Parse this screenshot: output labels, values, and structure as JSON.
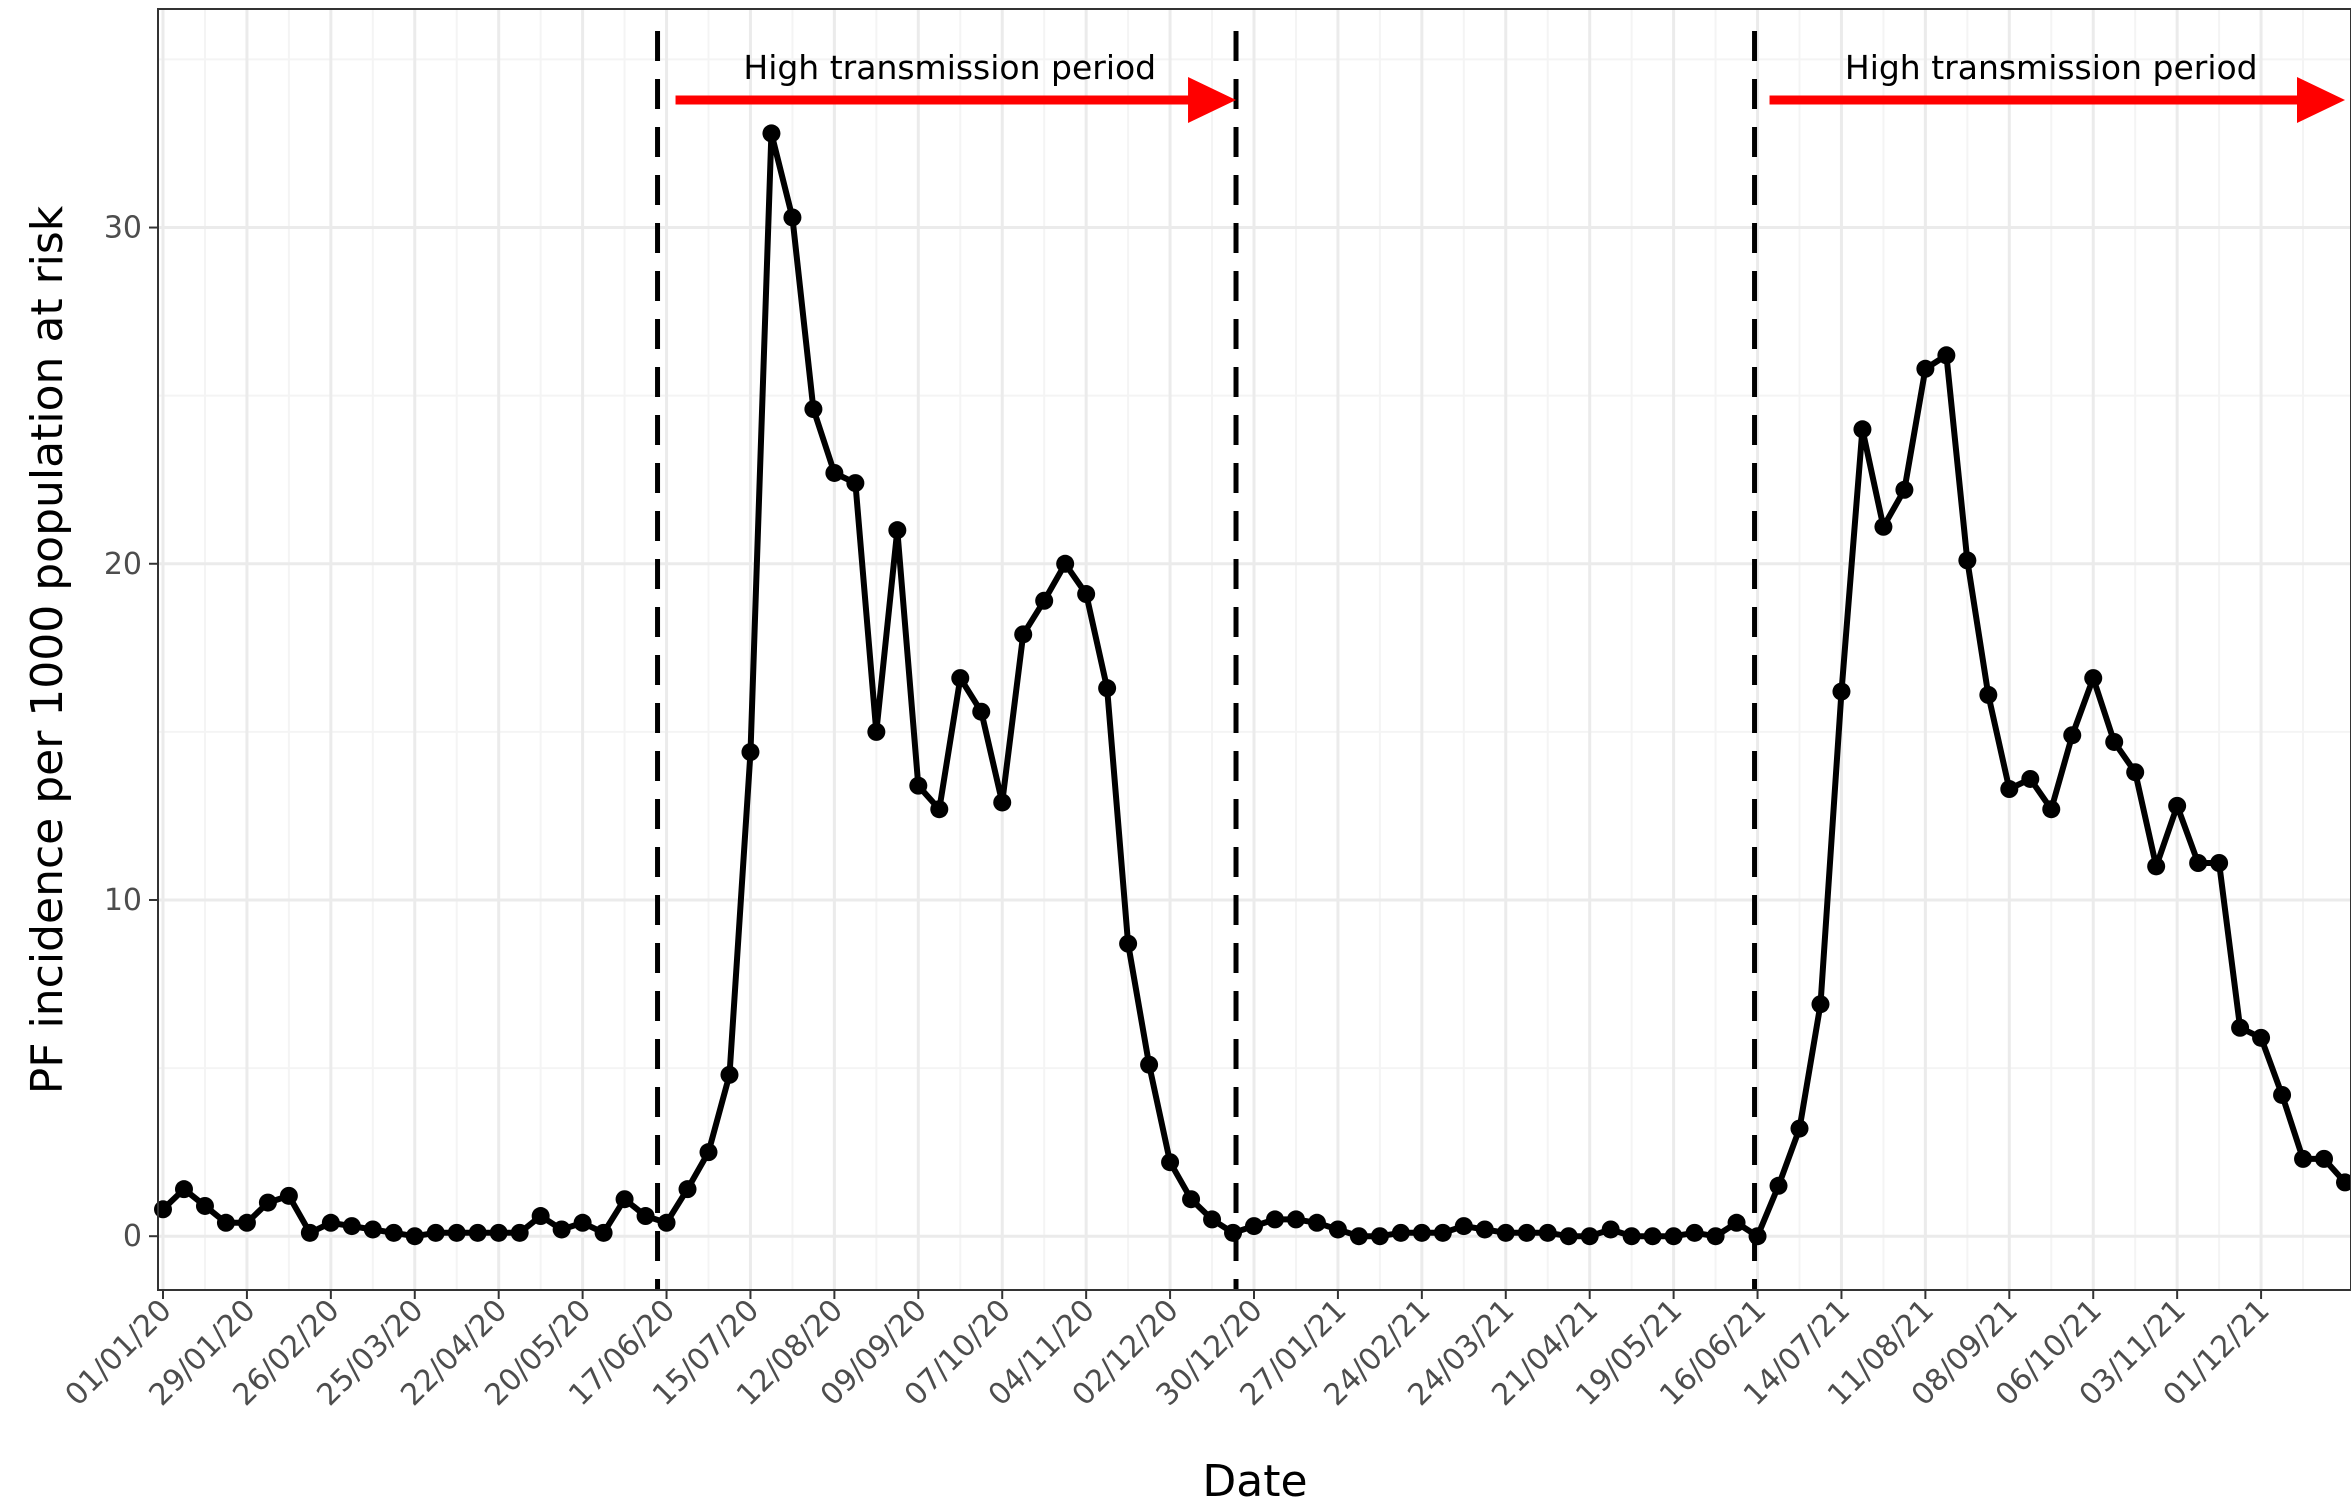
{
  "chart_data": {
    "type": "line",
    "title": "",
    "xlabel": "Date",
    "ylabel": "PF incidence per 1000 population at risk",
    "start_date": "2020-01-01",
    "end_date": "2021-12-29",
    "x_ticks": [
      {
        "date": "2020-01-01",
        "label": "01/01/20"
      },
      {
        "date": "2020-01-29",
        "label": "29/01/20"
      },
      {
        "date": "2020-02-26",
        "label": "26/02/20"
      },
      {
        "date": "2020-03-25",
        "label": "25/03/20"
      },
      {
        "date": "2020-04-22",
        "label": "22/04/20"
      },
      {
        "date": "2020-05-20",
        "label": "20/05/20"
      },
      {
        "date": "2020-06-17",
        "label": "17/06/20"
      },
      {
        "date": "2020-07-15",
        "label": "15/07/20"
      },
      {
        "date": "2020-08-12",
        "label": "12/08/20"
      },
      {
        "date": "2020-09-09",
        "label": "09/09/20"
      },
      {
        "date": "2020-10-07",
        "label": "07/10/20"
      },
      {
        "date": "2020-11-04",
        "label": "04/11/20"
      },
      {
        "date": "2020-12-02",
        "label": "02/12/20"
      },
      {
        "date": "2020-12-30",
        "label": "30/12/20"
      },
      {
        "date": "2021-01-27",
        "label": "27/01/21"
      },
      {
        "date": "2021-02-24",
        "label": "24/02/21"
      },
      {
        "date": "2021-03-24",
        "label": "24/03/21"
      },
      {
        "date": "2021-04-21",
        "label": "21/04/21"
      },
      {
        "date": "2021-05-19",
        "label": "19/05/21"
      },
      {
        "date": "2021-06-16",
        "label": "16/06/21"
      },
      {
        "date": "2021-07-14",
        "label": "14/07/21"
      },
      {
        "date": "2021-08-11",
        "label": "11/08/21"
      },
      {
        "date": "2021-09-08",
        "label": "08/09/21"
      },
      {
        "date": "2021-10-06",
        "label": "06/10/21"
      },
      {
        "date": "2021-11-03",
        "label": "03/11/21"
      },
      {
        "date": "2021-12-01",
        "label": "01/12/21"
      }
    ],
    "y_ticks": [
      0,
      10,
      20,
      30
    ],
    "ylim": [
      -1.6,
      36.5
    ],
    "grid": true,
    "series": [
      {
        "name": "",
        "color": "#000000",
        "x_start": "2020-01-01",
        "interval_days": 7,
        "values": [
          0.8,
          1.4,
          0.9,
          0.4,
          0.4,
          1.0,
          1.2,
          0.1,
          0.4,
          0.3,
          0.2,
          0.1,
          0.0,
          0.1,
          0.1,
          0.1,
          0.1,
          0.1,
          0.6,
          0.2,
          0.4,
          0.1,
          1.1,
          0.6,
          0.4,
          1.4,
          2.5,
          4.8,
          14.4,
          32.8,
          30.3,
          24.6,
          22.7,
          22.4,
          15.0,
          21.0,
          13.4,
          12.7,
          16.6,
          15.6,
          12.9,
          17.9,
          18.9,
          20.0,
          19.1,
          16.3,
          8.7,
          5.1,
          2.2,
          1.1,
          0.5,
          0.1,
          0.3,
          0.5,
          0.5,
          0.4,
          0.2,
          0.0,
          0.0,
          0.1,
          0.1,
          0.1,
          0.3,
          0.2,
          0.1,
          0.1,
          0.1,
          0.0,
          0.0,
          0.2,
          0.0,
          0.0,
          0.0,
          0.1,
          0.0,
          0.4,
          0.0,
          1.5,
          3.2,
          6.9,
          16.2,
          24.0,
          21.1,
          22.2,
          25.8,
          26.2,
          20.1,
          16.1,
          13.3,
          13.6,
          12.7,
          14.9,
          16.6,
          14.7,
          13.8,
          11.0,
          12.8,
          11.1,
          11.1,
          6.2,
          5.9,
          4.2,
          2.3,
          2.3,
          1.6
        ]
      }
    ],
    "vlines": [
      "2020-06-14",
      "2020-12-24",
      "2021-06-15"
    ],
    "annotations": [
      {
        "text": "High transmission period",
        "from": "2020-06-20",
        "to": "2020-12-24",
        "arrow_color": "#ff0000"
      },
      {
        "text": "High transmission period",
        "from": "2021-06-20",
        "to": "2021-12-29",
        "arrow_color": "#ff0000"
      }
    ],
    "colors": {
      "line": "#000000",
      "grid": "#ebebeb",
      "arrow": "#ff0000",
      "panel_border": "#333333"
    }
  }
}
